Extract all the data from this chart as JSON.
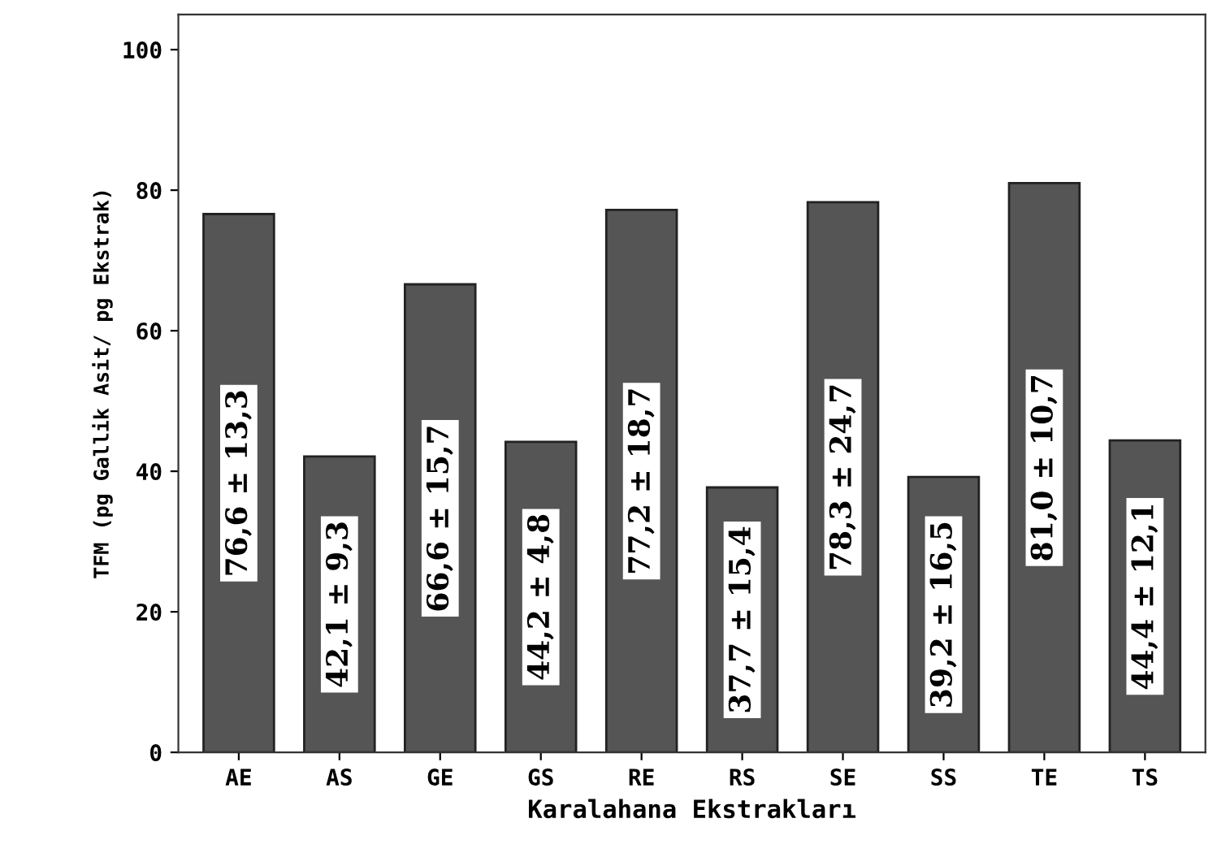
{
  "chart_data": {
    "type": "bar",
    "xlabel": "Karalahana Ekstrakları",
    "ylabel": "TFM (pg Gallik Asit/ pg Ekstrak)",
    "categories": [
      "AE",
      "AS",
      "GE",
      "GS",
      "RE",
      "RS",
      "SE",
      "SS",
      "TE",
      "TS"
    ],
    "values": [
      76.6,
      42.1,
      66.6,
      44.2,
      77.2,
      37.7,
      78.3,
      39.2,
      81.0,
      44.4
    ],
    "value_labels": [
      "76,6 ± 13,3",
      "42,1 ± 9,3",
      "66,6 ± 15,7",
      "44,2 ± 4,8",
      "77,2 ± 18,7",
      "37,7 ± 15,4",
      "78,3 ± 24,7",
      "39,2 ± 16,5",
      "81,0 ± 10,7",
      "44,4 ± 12,1"
    ],
    "color": "#555555",
    "ylim": [
      0,
      105
    ],
    "yticks": [
      0,
      20,
      40,
      60,
      80,
      100
    ],
    "grid": false
  }
}
